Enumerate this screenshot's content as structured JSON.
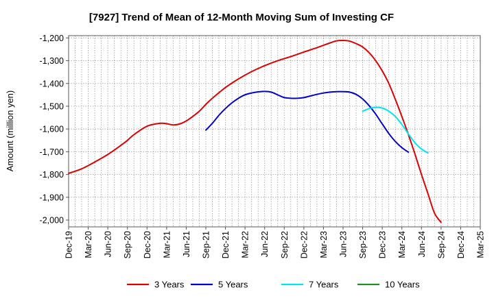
{
  "chart_data": {
    "type": "line",
    "title": "[7927]  Trend of Mean of 12-Month Moving Sum of Investing CF",
    "xlabel": "",
    "ylabel": "Amount (million yen)",
    "ylim": [
      -2030,
      -1190
    ],
    "y_ticks": [
      -1200,
      -1300,
      -1400,
      -1500,
      -1600,
      -1700,
      -1800,
      -1900,
      -2000
    ],
    "y_tick_labels": [
      "-1,200",
      "-1,300",
      "-1,400",
      "-1,500",
      "-1,600",
      "-1,700",
      "-1,800",
      "-1,900",
      "-2,000"
    ],
    "x_range_months": [
      0,
      63
    ],
    "x_ticks": [
      {
        "label": "Dec-19",
        "m": 0
      },
      {
        "label": "Mar-20",
        "m": 3
      },
      {
        "label": "Jun-20",
        "m": 6
      },
      {
        "label": "Sep-20",
        "m": 9
      },
      {
        "label": "Dec-20",
        "m": 12
      },
      {
        "label": "Mar-21",
        "m": 15
      },
      {
        "label": "Jun-21",
        "m": 18
      },
      {
        "label": "Sep-21",
        "m": 21
      },
      {
        "label": "Dec-21",
        "m": 24
      },
      {
        "label": "Mar-22",
        "m": 27
      },
      {
        "label": "Jun-22",
        "m": 30
      },
      {
        "label": "Sep-22",
        "m": 33
      },
      {
        "label": "Dec-22",
        "m": 36
      },
      {
        "label": "Mar-23",
        "m": 39
      },
      {
        "label": "Jun-23",
        "m": 42
      },
      {
        "label": "Sep-23",
        "m": 45
      },
      {
        "label": "Dec-23",
        "m": 48
      },
      {
        "label": "Mar-24",
        "m": 51
      },
      {
        "label": "Jun-24",
        "m": 54
      },
      {
        "label": "Sep-24",
        "m": 57
      },
      {
        "label": "Dec-24",
        "m": 60
      },
      {
        "label": "Mar-25",
        "m": 63
      }
    ],
    "grid": true,
    "legend_position": "bottom",
    "series": [
      {
        "name": "3 Years",
        "color": "#dd0000",
        "points": [
          [
            0,
            -1795
          ],
          [
            2,
            -1775
          ],
          [
            4,
            -1745
          ],
          [
            6,
            -1712
          ],
          [
            8,
            -1672
          ],
          [
            9,
            -1650
          ],
          [
            10,
            -1625
          ],
          [
            12,
            -1588
          ],
          [
            14,
            -1575
          ],
          [
            15,
            -1577
          ],
          [
            16,
            -1582
          ],
          [
            17,
            -1578
          ],
          [
            18,
            -1565
          ],
          [
            19,
            -1545
          ],
          [
            20,
            -1522
          ],
          [
            21,
            -1492
          ],
          [
            22,
            -1465
          ],
          [
            24,
            -1418
          ],
          [
            26,
            -1380
          ],
          [
            28,
            -1348
          ],
          [
            30,
            -1322
          ],
          [
            32,
            -1300
          ],
          [
            34,
            -1282
          ],
          [
            36,
            -1262
          ],
          [
            38,
            -1243
          ],
          [
            40,
            -1222
          ],
          [
            41,
            -1213
          ],
          [
            42,
            -1211
          ],
          [
            43,
            -1214
          ],
          [
            44,
            -1225
          ],
          [
            45,
            -1240
          ],
          [
            46,
            -1265
          ],
          [
            47,
            -1300
          ],
          [
            48,
            -1345
          ],
          [
            49,
            -1400
          ],
          [
            50,
            -1470
          ],
          [
            51,
            -1545
          ],
          [
            52,
            -1625
          ],
          [
            53,
            -1710
          ],
          [
            54,
            -1800
          ],
          [
            55,
            -1885
          ],
          [
            56,
            -1970
          ],
          [
            57,
            -2010
          ]
        ]
      },
      {
        "name": "5 Years",
        "color": "#0000cc",
        "points": [
          [
            21,
            -1605
          ],
          [
            22,
            -1575
          ],
          [
            23,
            -1540
          ],
          [
            24,
            -1510
          ],
          [
            25,
            -1485
          ],
          [
            26,
            -1465
          ],
          [
            27,
            -1450
          ],
          [
            28,
            -1442
          ],
          [
            29,
            -1437
          ],
          [
            30,
            -1435
          ],
          [
            31,
            -1438
          ],
          [
            32,
            -1450
          ],
          [
            33,
            -1462
          ],
          [
            34,
            -1465
          ],
          [
            35,
            -1465
          ],
          [
            36,
            -1462
          ],
          [
            37,
            -1455
          ],
          [
            38,
            -1448
          ],
          [
            39,
            -1442
          ],
          [
            40,
            -1438
          ],
          [
            41,
            -1436
          ],
          [
            42,
            -1436
          ],
          [
            43,
            -1438
          ],
          [
            44,
            -1448
          ],
          [
            45,
            -1468
          ],
          [
            46,
            -1498
          ],
          [
            47,
            -1535
          ],
          [
            48,
            -1578
          ],
          [
            49,
            -1620
          ],
          [
            50,
            -1655
          ],
          [
            51,
            -1682
          ],
          [
            52,
            -1702
          ]
        ]
      },
      {
        "name": "7 Years",
        "color": "#00e5ee",
        "points": [
          [
            45,
            -1522
          ],
          [
            46,
            -1510
          ],
          [
            47,
            -1505
          ],
          [
            48,
            -1508
          ],
          [
            49,
            -1522
          ],
          [
            50,
            -1545
          ],
          [
            51,
            -1580
          ],
          [
            52,
            -1622
          ],
          [
            53,
            -1660
          ],
          [
            54,
            -1688
          ],
          [
            55,
            -1705
          ]
        ]
      },
      {
        "name": "10 Years",
        "color": "#228b22",
        "points": []
      }
    ]
  }
}
